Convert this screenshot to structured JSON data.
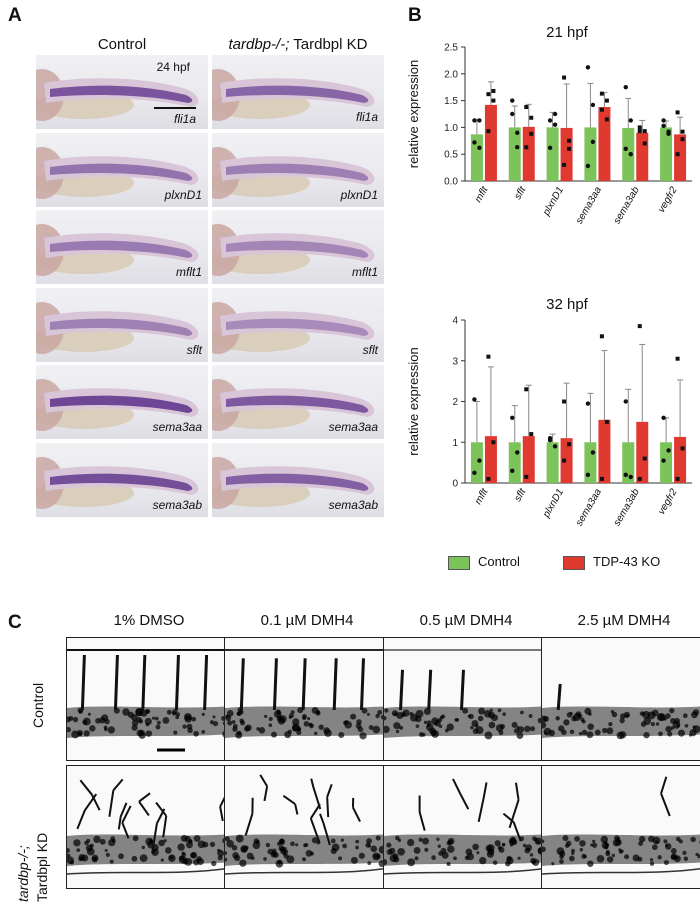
{
  "panels": {
    "a_letter": "A",
    "b_letter": "B",
    "c_letter": "C"
  },
  "panel_a": {
    "col_control": "Control",
    "col_kd_italic": "tardbp-/-;",
    "col_kd_rest": " Tardbpl KD",
    "stage": "24 hpf",
    "rows": [
      {
        "gene": "fli1a"
      },
      {
        "gene": "plxnD1"
      },
      {
        "gene": "mflt1"
      },
      {
        "gene": "sflt"
      },
      {
        "gene": "sema3aa"
      },
      {
        "gene": "sema3ab"
      }
    ]
  },
  "panel_b": {
    "legend": [
      {
        "label": "Control",
        "color": "#7cc35a"
      },
      {
        "label": "TDP-43 KO",
        "color": "#e03a30"
      }
    ]
  },
  "chart_data": [
    {
      "type": "bar",
      "title": "21 hpf",
      "ylabel": "relative expression",
      "xlabel": "",
      "ylim": [
        0,
        2.5
      ],
      "yticks": [
        "0.0",
        "0.5",
        "1.0",
        "1.5",
        "2.0",
        "2.5"
      ],
      "categories": [
        "mflt",
        "sflt",
        "plxnD1",
        "sema3aa",
        "sema3ab",
        "vegfr2"
      ],
      "series": [
        {
          "name": "Control",
          "color": "#7cc35a",
          "values": [
            0.87,
            1.0,
            1.0,
            1.0,
            0.99,
            1.0
          ],
          "err": [
            0.28,
            0.4,
            0.28,
            0.82,
            0.55,
            0.12
          ]
        },
        {
          "name": "TDP-43 KO",
          "color": "#e03a30",
          "values": [
            1.42,
            1.01,
            0.99,
            1.38,
            0.9,
            0.87
          ],
          "err": [
            0.43,
            0.42,
            0.82,
            0.27,
            0.23,
            0.32
          ]
        }
      ],
      "points": [
        [
          [
            1.13,
            0.62,
            0.72,
            1.13
          ],
          [
            1.62,
            1.68,
            0.93,
            1.5
          ]
        ],
        [
          [
            1.5,
            0.9,
            1.25,
            0.63
          ],
          [
            1.38,
            1.18,
            0.63,
            0.88
          ]
        ],
        [
          [
            1.13,
            1.25,
            0.62,
            1.05
          ],
          [
            1.93,
            0.75,
            0.3,
            0.6
          ]
        ],
        [
          [
            2.12,
            1.42,
            0.28,
            0.73
          ],
          [
            1.63,
            1.5,
            1.33,
            1.15
          ]
        ],
        [
          [
            1.75,
            1.13,
            0.6,
            0.5
          ],
          [
            1.0,
            0.93,
            0.93,
            0.7
          ]
        ],
        [
          [
            1.03,
            0.88,
            1.13,
            0.92
          ],
          [
            1.28,
            0.92,
            0.5,
            0.78
          ]
        ]
      ]
    },
    {
      "type": "bar",
      "title": "32 hpf",
      "ylabel": "relative expression",
      "xlabel": "",
      "ylim": [
        0,
        4
      ],
      "yticks": [
        "0",
        "1",
        "2",
        "3",
        "4"
      ],
      "categories": [
        "mflt",
        "sflt",
        "plxnD1",
        "sema3aa",
        "sema3ab",
        "vegfr2"
      ],
      "series": [
        {
          "name": "Control",
          "color": "#7cc35a",
          "values": [
            1.0,
            1.0,
            1.0,
            1.0,
            1.0,
            1.0
          ],
          "err": [
            1.0,
            0.9,
            0.2,
            1.2,
            1.3,
            0.6
          ]
        },
        {
          "name": "TDP-43 KO",
          "color": "#e03a30",
          "values": [
            1.15,
            1.15,
            1.1,
            1.55,
            1.5,
            1.13
          ],
          "err": [
            1.7,
            1.25,
            1.35,
            1.7,
            1.9,
            1.4
          ]
        }
      ],
      "points": [
        [
          [
            2.05,
            0.55,
            0.25
          ],
          [
            3.1,
            1.0,
            0.1
          ]
        ],
        [
          [
            1.6,
            0.75,
            0.3
          ],
          [
            2.3,
            1.2,
            0.15
          ]
        ],
        [
          [
            1.05,
            0.9,
            1.1
          ],
          [
            2.0,
            0.95,
            0.55
          ]
        ],
        [
          [
            1.95,
            0.75,
            0.2
          ],
          [
            3.6,
            1.5,
            0.1
          ]
        ],
        [
          [
            2.0,
            0.15,
            0.2
          ],
          [
            3.85,
            0.6,
            0.1
          ]
        ],
        [
          [
            1.6,
            0.8,
            0.55
          ],
          [
            3.05,
            0.85,
            0.1
          ]
        ]
      ]
    }
  ],
  "panel_c": {
    "columns": [
      "1% DMSO",
      "0.1 µM DMH4",
      "0.5 µM DMH4",
      "2.5 µM DMH4"
    ],
    "row1_label": "Control",
    "row2_label_italic": "tardbp-/-;",
    "row2_label_rest": "Tardbpl KD"
  }
}
